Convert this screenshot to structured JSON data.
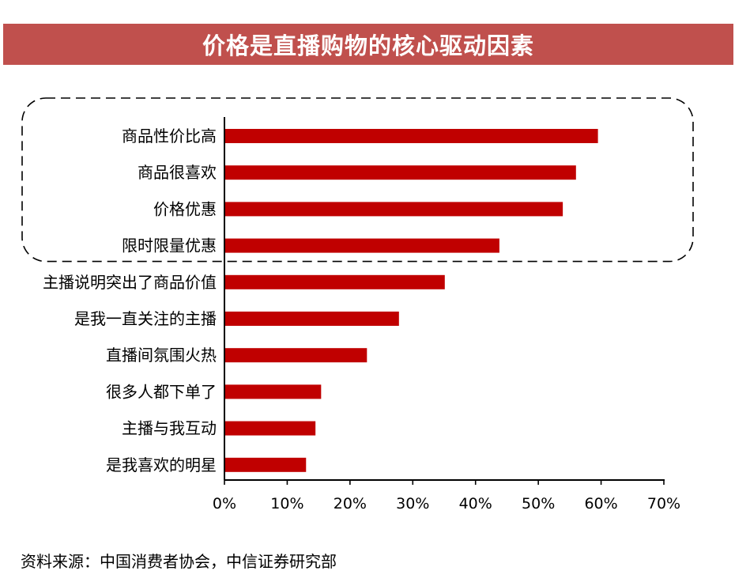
{
  "header": {
    "title": "价格是直播购物的核心驱动因素"
  },
  "colors": {
    "banner": "#c0504d",
    "bar": "#c00000",
    "axis": "#000000",
    "highlight_border": "#000000"
  },
  "chart_data": {
    "type": "bar",
    "orientation": "horizontal",
    "title": "价格是直播购物的核心驱动因素",
    "xlabel": "",
    "ylabel": "",
    "xlim": [
      0,
      0.7
    ],
    "x_ticks": [
      "0%",
      "10%",
      "20%",
      "30%",
      "40%",
      "50%",
      "60%",
      "70%"
    ],
    "x_tick_values": [
      0,
      0.1,
      0.2,
      0.3,
      0.4,
      0.5,
      0.6,
      0.7
    ],
    "grid": false,
    "legend": "none",
    "categories": [
      "商品性价比高",
      "商品很喜欢",
      "价格优惠",
      "限时限量优惠",
      "主播说明突出了商品价值",
      "是我一直关注的主播",
      "直播间氛围火热",
      "很多人都下单了",
      "主播与我互动",
      "是我喜欢的明星"
    ],
    "values": [
      0.595,
      0.56,
      0.539,
      0.438,
      0.351,
      0.278,
      0.227,
      0.154,
      0.145,
      0.13
    ],
    "highlighted_categories": [
      "商品性价比高",
      "商品很喜欢",
      "价格优惠",
      "限时限量优惠"
    ]
  },
  "footer": {
    "source": "资料来源：中国消费者协会，中信证券研究部"
  }
}
